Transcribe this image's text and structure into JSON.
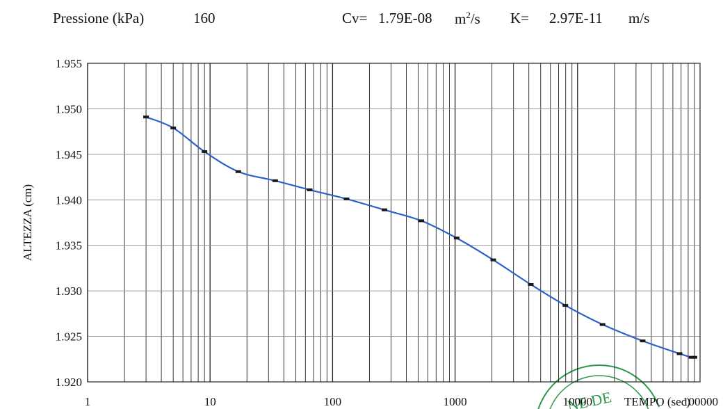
{
  "header": {
    "pressure_label": "Pressione (kPa)",
    "pressure_value": "160",
    "cv_label": "Cv=",
    "cv_value": "1.79E-08",
    "cv_unit_base": "m",
    "cv_unit_exp": "2",
    "cv_unit_rest": "/s",
    "k_label": "K=",
    "k_value": "2.97E-11",
    "k_unit": "m/s"
  },
  "stamp_text": "NE DE",
  "chart_data": {
    "type": "line",
    "x_scale": "log",
    "xlabel": "TEMPO (sec)",
    "ylabel": "ALTEZZA (cm)",
    "xlim": [
      1,
      100000
    ],
    "ylim": [
      1.92,
      1.955
    ],
    "grid": true,
    "x_ticks": [
      1,
      10,
      100,
      1000,
      10000,
      100000
    ],
    "x_tick_labels": [
      "1",
      "10",
      "100",
      "1000",
      "10000",
      "100000"
    ],
    "y_ticks": [
      1.92,
      1.925,
      1.93,
      1.935,
      1.94,
      1.945,
      1.95,
      1.955
    ],
    "y_tick_labels": [
      "1.920",
      "1.925",
      "1.930",
      "1.935",
      "1.940",
      "1.945",
      "1.950",
      "1.955"
    ],
    "series": [
      {
        "color": "#2a62c9",
        "marker_color": "#1a1a1a",
        "x": [
          3,
          5,
          9,
          17,
          34,
          65,
          130,
          265,
          530,
          1030,
          2050,
          4150,
          7950,
          16000,
          34000,
          68000,
          85000,
          90000
        ],
        "y": [
          1.9491,
          1.9479,
          1.9453,
          1.9431,
          1.9421,
          1.9411,
          1.9401,
          1.9389,
          1.9377,
          1.9358,
          1.9334,
          1.9307,
          1.9284,
          1.9263,
          1.9245,
          1.9231,
          1.9227,
          1.9227
        ]
      }
    ],
    "colors": {
      "grid_major": "#222222",
      "grid_horizontal": "#888888",
      "stamp": "#2a9a4a"
    }
  }
}
